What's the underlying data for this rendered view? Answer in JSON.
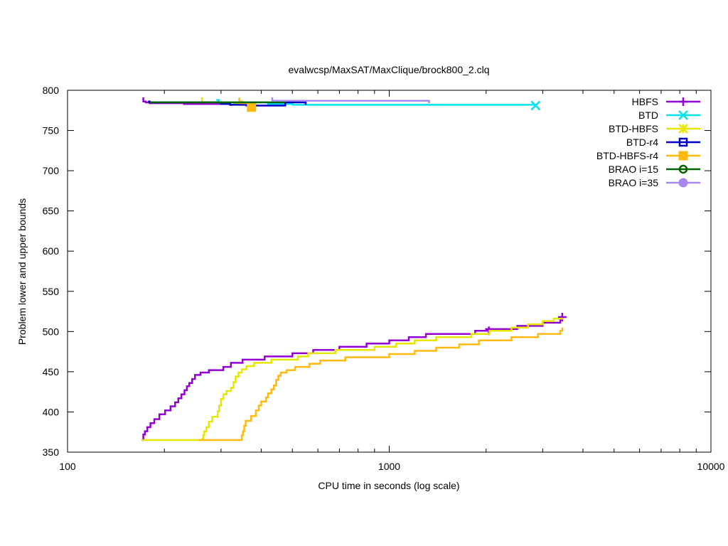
{
  "chart_data": {
    "type": "line",
    "title": "evalwcsp/MaxSAT/MaxClique/brock800_2.clq",
    "xlabel": "CPU time in seconds (log scale)",
    "ylabel": "Problem lower and upper bounds",
    "x_scale": "log",
    "xlim": [
      100,
      10000
    ],
    "ylim": [
      350,
      800
    ],
    "x_ticks": [
      100,
      1000,
      10000
    ],
    "x_tick_labels": [
      "100",
      "1000",
      "10000"
    ],
    "y_ticks": [
      350,
      400,
      450,
      500,
      550,
      600,
      650,
      700,
      750,
      800
    ],
    "y_tick_labels": [
      "350",
      "400",
      "450",
      "500",
      "550",
      "600",
      "650",
      "700",
      "750",
      "800"
    ],
    "grid": false,
    "legend_position": "top-right",
    "series": [
      {
        "name": "HBFS",
        "color": "#9400d3",
        "marker": "plus",
        "upper": [
          [
            171,
            790
          ],
          [
            172,
            786
          ],
          [
            175,
            785
          ],
          [
            180,
            784
          ],
          [
            230,
            783
          ],
          [
            300,
            783
          ]
        ],
        "lower": [
          [
            170,
            365
          ],
          [
            172,
            372
          ],
          [
            174,
            376
          ],
          [
            177,
            381
          ],
          [
            181,
            386
          ],
          [
            186,
            391
          ],
          [
            193,
            397
          ],
          [
            201,
            402
          ],
          [
            209,
            407
          ],
          [
            216,
            412
          ],
          [
            221,
            417
          ],
          [
            226,
            422
          ],
          [
            231,
            427
          ],
          [
            235,
            432
          ],
          [
            239,
            436
          ],
          [
            244,
            441
          ],
          [
            249,
            446
          ],
          [
            259,
            449
          ],
          [
            275,
            452
          ],
          [
            305,
            456
          ],
          [
            322,
            461
          ],
          [
            350,
            465
          ],
          [
            410,
            469
          ],
          [
            500,
            473
          ],
          [
            580,
            477
          ],
          [
            700,
            481
          ],
          [
            850,
            485
          ],
          [
            1000,
            489
          ],
          [
            1150,
            493
          ],
          [
            1300,
            497
          ],
          [
            1500,
            497
          ],
          [
            1850,
            501
          ],
          [
            2000,
            503
          ],
          [
            2500,
            507
          ],
          [
            3000,
            511
          ],
          [
            3400,
            515
          ],
          [
            3450,
            519
          ]
        ],
        "end_markers": [
          [
            3450,
            518
          ],
          [
            2040,
            501
          ]
        ]
      },
      {
        "name": "BTD",
        "color": "#00e5ee",
        "marker": "x",
        "upper": [
          [
            290,
            788
          ],
          [
            295,
            785
          ],
          [
            420,
            783
          ],
          [
            500,
            782
          ],
          [
            2850,
            781
          ]
        ],
        "lower": [],
        "end_markers": [
          [
            2850,
            781
          ]
        ]
      },
      {
        "name": "BTD-HBFS",
        "color": "#e6e600",
        "marker": "star",
        "upper": [
          [
            260,
            790
          ],
          [
            262,
            785
          ],
          [
            330,
            784
          ],
          [
            380,
            783
          ]
        ],
        "lower": [
          [
            170,
            365
          ],
          [
            255,
            365
          ],
          [
            262,
            366
          ],
          [
            264,
            371
          ],
          [
            266,
            376
          ],
          [
            270,
            381
          ],
          [
            275,
            388
          ],
          [
            282,
            394
          ],
          [
            293,
            401
          ],
          [
            296,
            408
          ],
          [
            300,
            416
          ],
          [
            305,
            422
          ],
          [
            312,
            426
          ],
          [
            322,
            430
          ],
          [
            328,
            437
          ],
          [
            333,
            444
          ],
          [
            340,
            449
          ],
          [
            348,
            453
          ],
          [
            360,
            457
          ],
          [
            380,
            461
          ],
          [
            430,
            465
          ],
          [
            520,
            469
          ],
          [
            560,
            473
          ],
          [
            680,
            477
          ],
          [
            900,
            481
          ],
          [
            1050,
            485
          ],
          [
            1200,
            489
          ],
          [
            1400,
            493
          ],
          [
            1800,
            497
          ],
          [
            2050,
            501
          ],
          [
            2400,
            505
          ],
          [
            2700,
            509
          ],
          [
            3000,
            513
          ],
          [
            3250,
            516
          ],
          [
            3450,
            517
          ]
        ],
        "end_markers": []
      },
      {
        "name": "BTD-r4",
        "color": "#0000cd",
        "marker": "square",
        "upper": [
          [
            178,
            786
          ],
          [
            180,
            785
          ],
          [
            300,
            783
          ],
          [
            320,
            782
          ],
          [
            360,
            781
          ],
          [
            460,
            781
          ],
          [
            475,
            785
          ],
          [
            550,
            782
          ]
        ],
        "lower": [],
        "end_markers": []
      },
      {
        "name": "BTD-HBFS-r4",
        "color": "#ffb90f",
        "marker": "square-filled",
        "upper": [
          [
            340,
            790
          ],
          [
            342,
            786
          ],
          [
            350,
            784
          ],
          [
            370,
            781
          ],
          [
            373,
            779
          ]
        ],
        "lower": [
          [
            255,
            365
          ],
          [
            345,
            365
          ],
          [
            348,
            371
          ],
          [
            351,
            376
          ],
          [
            354,
            383
          ],
          [
            358,
            389
          ],
          [
            372,
            395
          ],
          [
            385,
            402
          ],
          [
            393,
            408
          ],
          [
            400,
            413
          ],
          [
            414,
            418
          ],
          [
            420,
            423
          ],
          [
            430,
            428
          ],
          [
            438,
            433
          ],
          [
            445,
            440
          ],
          [
            452,
            445
          ],
          [
            460,
            449
          ],
          [
            480,
            452
          ],
          [
            510,
            456
          ],
          [
            565,
            460
          ],
          [
            610,
            464
          ],
          [
            730,
            468
          ],
          [
            1000,
            472
          ],
          [
            1200,
            476
          ],
          [
            1400,
            480
          ],
          [
            1650,
            484
          ],
          [
            1900,
            489
          ],
          [
            2400,
            493
          ],
          [
            2900,
            497
          ],
          [
            3400,
            501
          ],
          [
            3450,
            505
          ]
        ],
        "end_markers": [
          [
            373,
            779
          ]
        ]
      },
      {
        "name": "BRAO i=15",
        "color": "#006400",
        "marker": "circle",
        "upper": [
          [
            180,
            785
          ],
          [
            430,
            785
          ],
          [
            475,
            785
          ]
        ],
        "lower": [],
        "end_markers": []
      },
      {
        "name": "BRAO i=35",
        "color": "#a987f0",
        "marker": "circle-filled",
        "upper": [
          [
            430,
            790
          ],
          [
            433,
            787
          ],
          [
            1330,
            786
          ],
          [
            1330,
            784
          ]
        ],
        "lower": [],
        "end_markers": []
      }
    ]
  }
}
